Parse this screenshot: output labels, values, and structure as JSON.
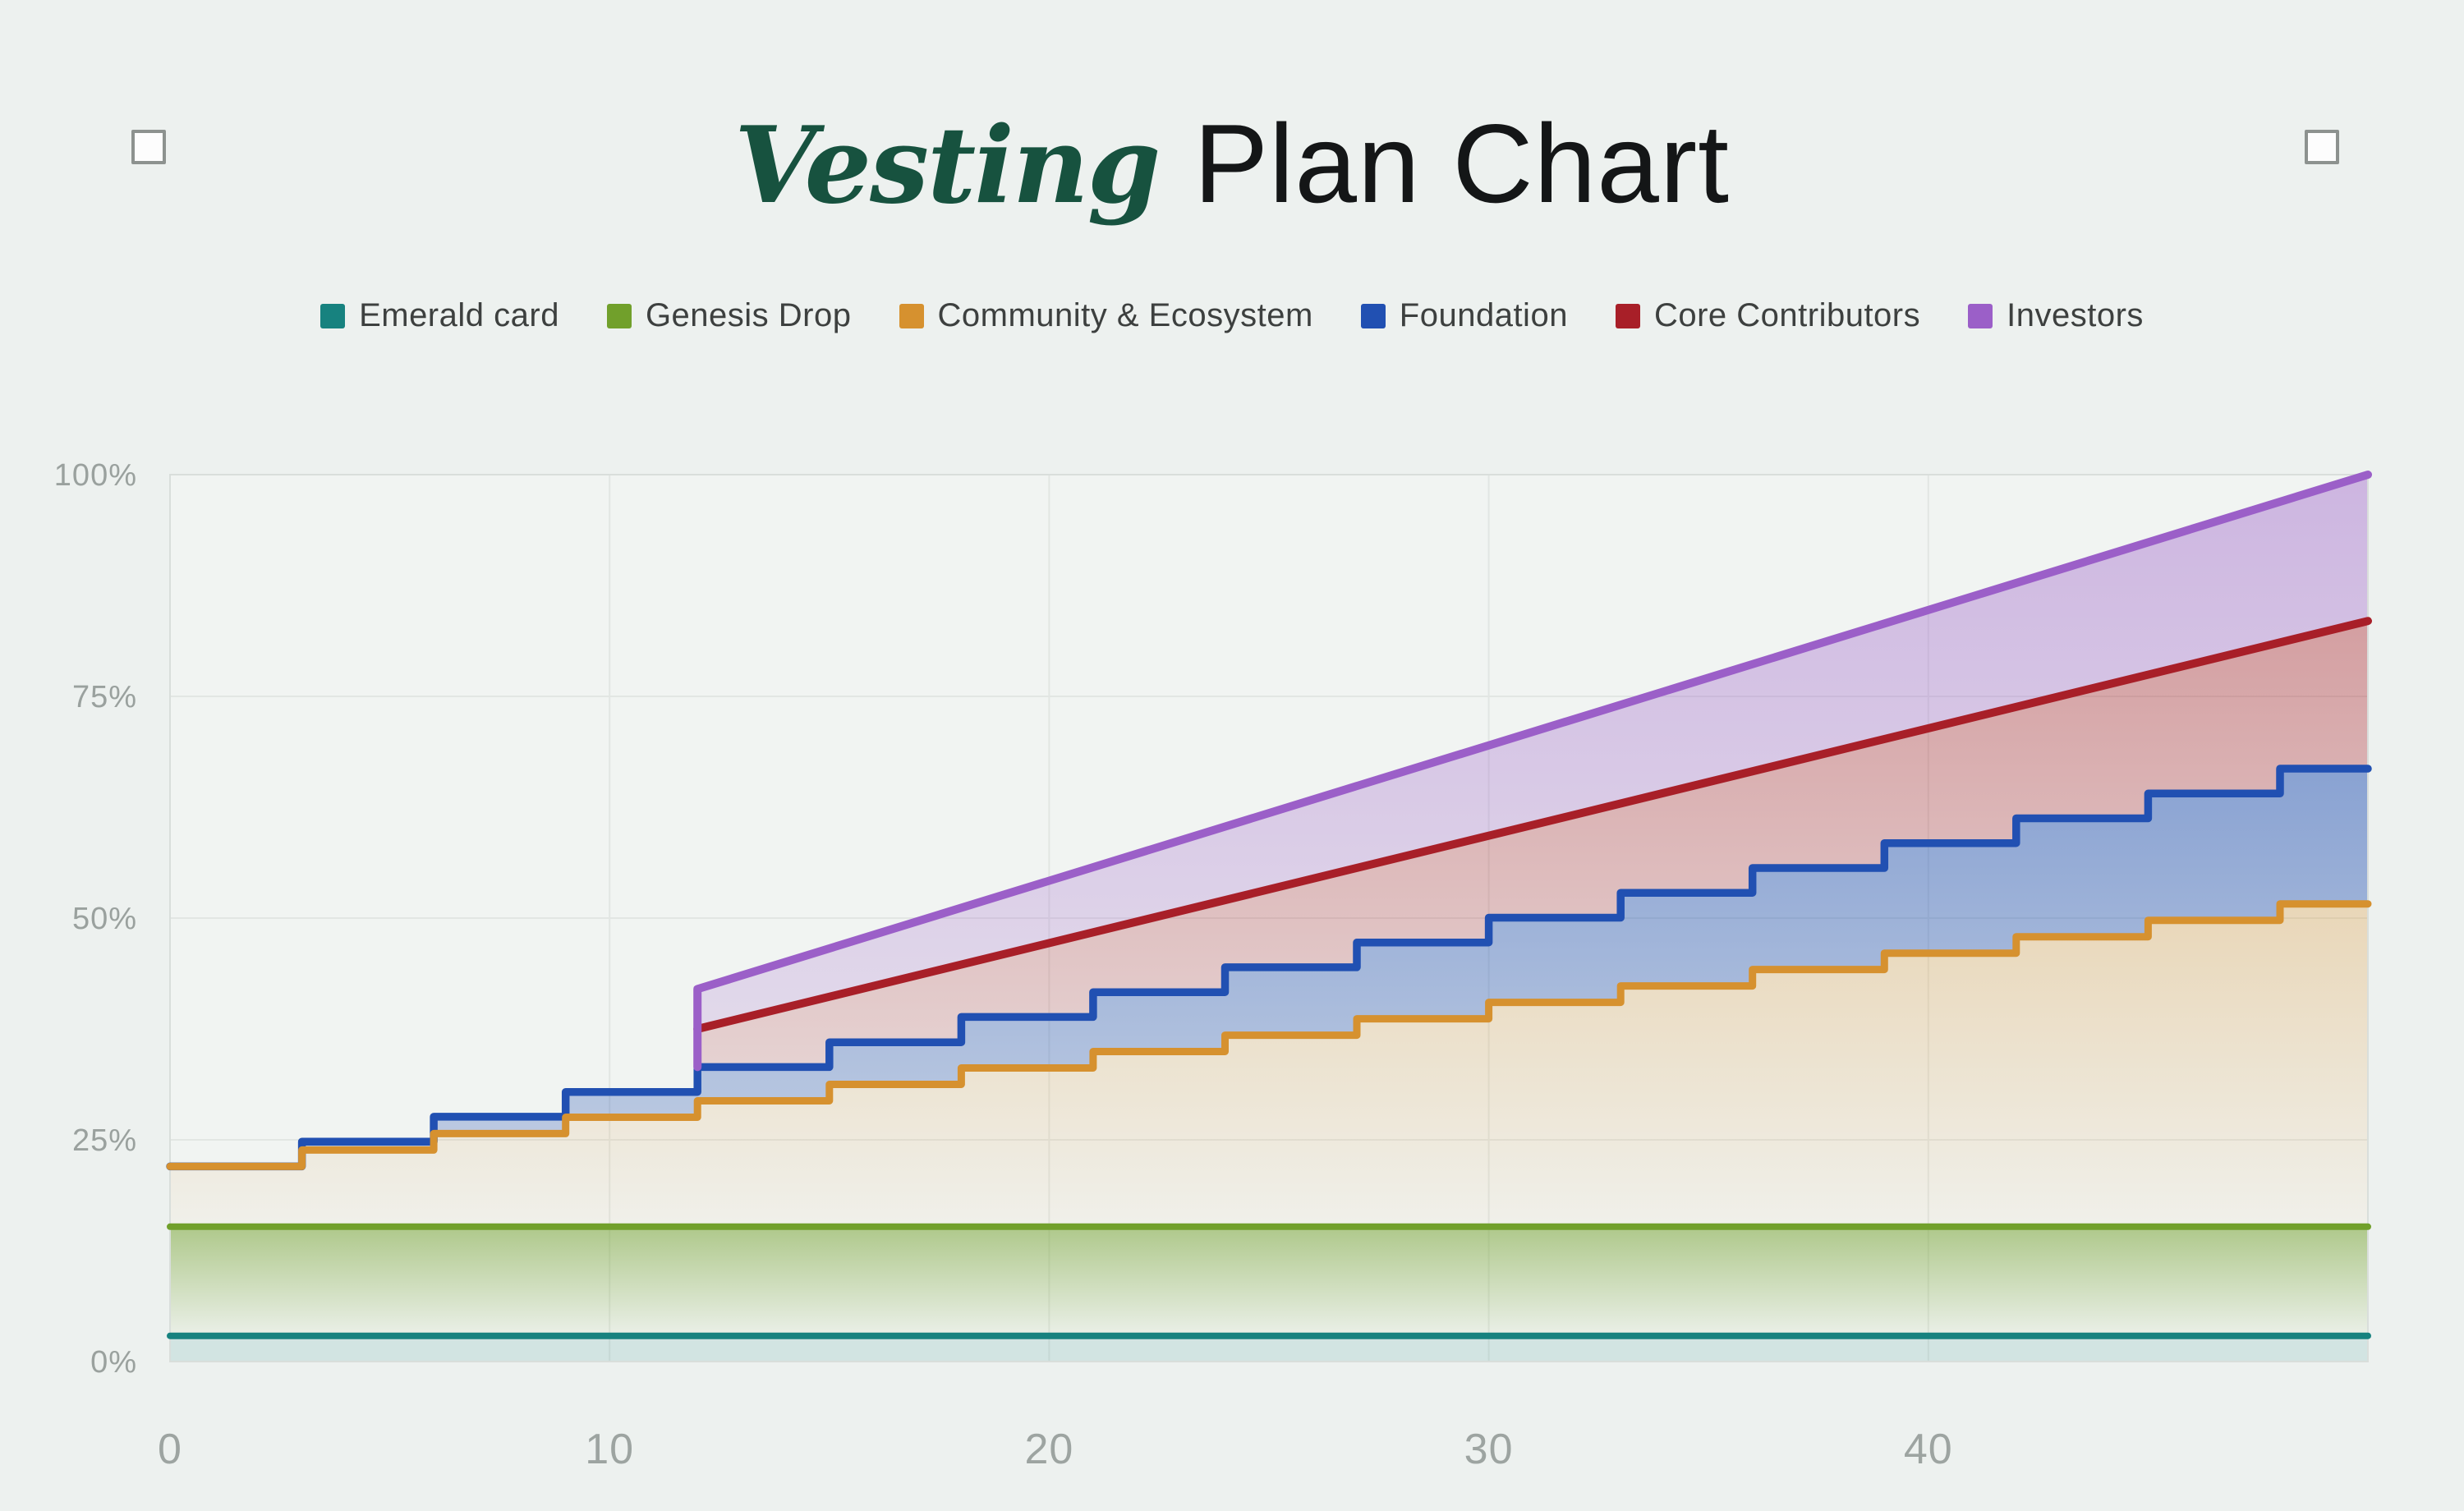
{
  "title": {
    "accent": "Vesting",
    "rest": "Plan Chart",
    "accent_color": "#17523f",
    "rest_color": "#141617"
  },
  "chart_data": {
    "type": "area",
    "title": "Vesting Plan Chart",
    "xlabel": "",
    "ylabel": "",
    "x_axis": {
      "min": 0,
      "max": 50,
      "tick_values": [
        0,
        10,
        20,
        30,
        40
      ],
      "tick_labels": [
        "0",
        "10",
        "20",
        "30",
        "40"
      ],
      "gridlines": [
        10,
        20,
        30,
        40
      ]
    },
    "y_axis": {
      "min": 0,
      "max": 100,
      "tick_values": [
        0,
        25,
        50,
        75,
        100
      ],
      "tick_labels": [
        "0%",
        "25%",
        "50%",
        "75%",
        "100%"
      ],
      "gridlines": [
        25,
        50,
        75
      ]
    },
    "grid": true,
    "legend_position": "top",
    "step_months": [
      3,
      6,
      9,
      12,
      15,
      18,
      21,
      24,
      27,
      30,
      33,
      36,
      39,
      42,
      45,
      48
    ],
    "cliff_month": 12,
    "series": [
      {
        "name": "Emerald card",
        "color": "#17827f",
        "kind": "constant",
        "value": 2.9
      },
      {
        "name": "Genesis Drop",
        "color": "#71a02b",
        "kind": "constant",
        "value": 15.2
      },
      {
        "name": "Community & Ecosystem",
        "color": "#d6912f",
        "kind": "step",
        "levels": [
          22,
          23.85,
          25.7,
          27.55,
          29.4,
          31.25,
          33.1,
          34.95,
          36.8,
          38.65,
          40.5,
          42.35,
          44.2,
          46.05,
          47.9,
          49.75,
          51.6
        ]
      },
      {
        "name": "Foundation",
        "color": "#2150b2",
        "kind": "step",
        "levels": [
          22,
          24.8,
          27.6,
          30.4,
          33.2,
          36.0,
          38.85,
          41.65,
          44.45,
          47.25,
          50.05,
          52.85,
          55.65,
          58.45,
          61.25,
          64.05,
          66.85
        ]
      },
      {
        "name": "Core Contributors",
        "color": "#a81f28",
        "kind": "line",
        "points": [
          [
            12,
            37.5
          ],
          [
            50,
            83.5
          ]
        ]
      },
      {
        "name": "Investors",
        "color": "#9b5fc8",
        "kind": "line",
        "cliff_from": 33.2,
        "points": [
          [
            12,
            42
          ],
          [
            50,
            100
          ]
        ]
      }
    ]
  }
}
